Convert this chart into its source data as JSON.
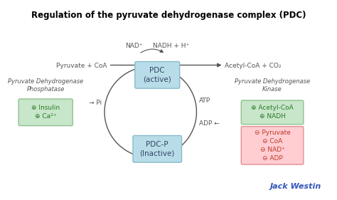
{
  "title": "Regulation of the pyruvate dehydrogenase complex (PDC)",
  "bg_color": "#ffffff",
  "title_fontsize": 8.5,
  "title_fontweight": "bold",
  "pdc_active_label": "PDC\n(active)",
  "pdc_inactive_label": "PDC-P\n(Inactive)",
  "box_facecolor": "#b8dde8",
  "box_edgecolor": "#88bbcc",
  "top_arrow_label_left": "Pyruvate + CoA",
  "top_arrow_label_right": "Acetyl-CoA + CO₂",
  "nad_label": "NAD⁺",
  "nadh_label": "NADH + H⁺",
  "atp_label": "ATP",
  "pi_label": "Pi",
  "adp_label": "ADP",
  "left_title": "Pyruvate Dehydrogenase\nPhosphatase",
  "right_title": "Pyruvate Dehydrogenase\nKinase",
  "left_green_items": [
    "⊕ Insulin",
    "⊕ Ca²⁺"
  ],
  "right_green_items": [
    "⊕ Acetyl-CoA",
    "⊕ NADH"
  ],
  "right_red_items": [
    "⊖ Pyruvate",
    "⊖ CoA",
    "⊖ NAD⁺",
    "⊖ ADP"
  ],
  "green_box_color": "#c8e6c9",
  "green_box_edge": "#90c090",
  "red_box_color": "#ffcdd2",
  "red_box_edge": "#e09090",
  "jack_westin_color": "#3355bb",
  "text_color": "#555555",
  "arrow_color": "#555555"
}
